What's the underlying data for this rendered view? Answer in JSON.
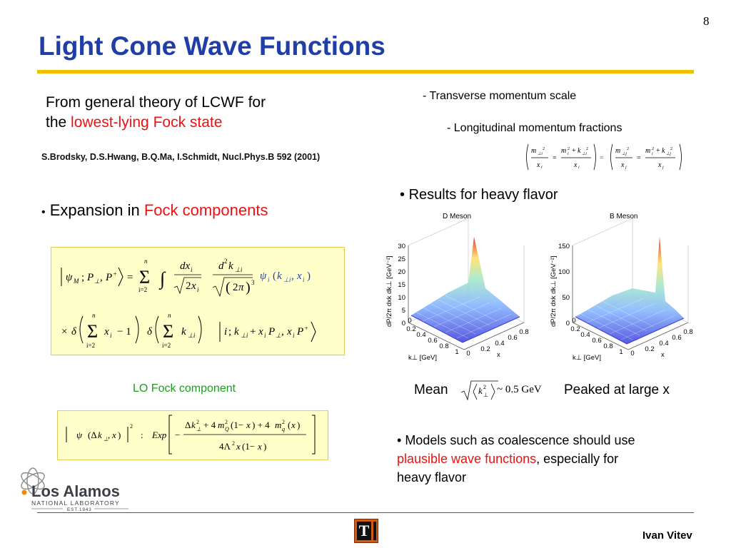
{
  "page_number": "8",
  "title": "Light Cone Wave Functions",
  "intro": {
    "line1": "From general theory of LCWF for",
    "line2_prefix": "the ",
    "line2_highlight": "lowest-lying Fock state"
  },
  "reference": "S.Brodsky, D.S.Hwang, B.Q.Ma, I.Schmidt, Nucl.Phys.B 592 (2001)",
  "notes": {
    "transverse": "- Transverse momentum scale",
    "longitudinal": "- Longitudinal momentum fractions"
  },
  "expansion": {
    "bullet": "•",
    "prefix": " Expansion in ",
    "highlight": "Fock components"
  },
  "lo_label": "LO Fock component",
  "results": {
    "bullet": "•",
    "text": " Results for heavy flavor"
  },
  "plots": [
    {
      "title": "D Meson",
      "z_ticks": [
        "30",
        "25",
        "20",
        "15",
        "10",
        "5",
        "0"
      ],
      "x_ticks": [
        "0.8",
        "0.6",
        "0.4",
        "0.2",
        "0"
      ],
      "k_ticks": [
        "0",
        "0.2",
        "0.4",
        "0.6",
        "0.8",
        "1"
      ],
      "zlabel": "dP/2π dxk dk⊥ [GeV⁻²]",
      "klabel": "k⊥ [GeV]",
      "xlabel": "x"
    },
    {
      "title": "B Meson",
      "z_ticks": [
        "150",
        "100",
        "50",
        "0"
      ],
      "x_ticks": [
        "0.8",
        "0.6",
        "0.4",
        "0.2",
        "0"
      ],
      "k_ticks": [
        "0",
        "0.2",
        "0.4",
        "0.6",
        "0.8",
        "1"
      ],
      "zlabel": "dP/2π dxk dk⊥ [GeV⁻²]",
      "klabel": "k⊥ [GeV]",
      "xlabel": "x"
    }
  ],
  "mean": {
    "label": "Mean",
    "value": "~ 0.5 GeV"
  },
  "peaked": "Peaked at large x",
  "models": {
    "bullet": "•",
    "text1": " Models such as coalescence should use",
    "highlight": "plausible wave functions",
    "text2": ", especially for",
    "text3": "heavy flavor"
  },
  "logo": {
    "name": "Los Alamos",
    "sub": "NATIONAL LABORATORY",
    "est": "EST.1943"
  },
  "division_badge": "T",
  "author": "Ivan Vitev",
  "colors": {
    "title": "#1f3fa6",
    "rule": "#f0c000",
    "highlight": "#ee1111",
    "lo_label": "#1aa11a",
    "box_bg": "#ffffc9"
  }
}
